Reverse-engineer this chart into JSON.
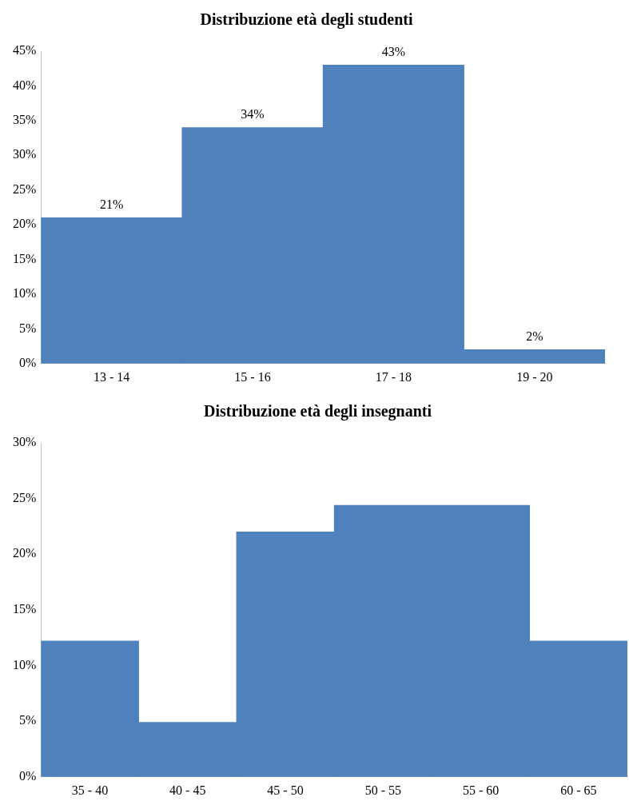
{
  "chart_data": [
    {
      "type": "bar",
      "title": "Distribuzione età degli studenti",
      "categories": [
        "13 - 14",
        "15 - 16",
        "17 - 18",
        "19 - 20"
      ],
      "values": [
        21,
        34,
        43,
        2
      ],
      "value_labels": [
        "21%",
        "34%",
        "43%",
        "2%"
      ],
      "color": "#4f81bd",
      "ylim": [
        0,
        45
      ],
      "yticks": [
        {
          "value": 0,
          "label": "0%"
        },
        {
          "value": 5,
          "label": "5%"
        },
        {
          "value": 10,
          "label": "10%"
        },
        {
          "value": 15,
          "label": "15%"
        },
        {
          "value": 20,
          "label": "20%"
        },
        {
          "value": 25,
          "label": "25%"
        },
        {
          "value": 30,
          "label": "30%"
        },
        {
          "value": 35,
          "label": "35%"
        },
        {
          "value": 40,
          "label": "40%"
        },
        {
          "value": 45,
          "label": "45%"
        }
      ],
      "grid": false,
      "legend": false
    },
    {
      "type": "bar",
      "title": "Distribuzione età degli insegnanti",
      "categories": [
        "35 - 40",
        "40 - 45",
        "45 - 50",
        "50 - 55",
        "55 - 60",
        "60 - 65"
      ],
      "values": [
        12.2,
        4.9,
        22.0,
        24.4,
        24.4,
        12.2
      ],
      "color": "#4f81bd",
      "ylim": [
        0,
        30
      ],
      "yticks": [
        {
          "value": 0,
          "label": "0%"
        },
        {
          "value": 5,
          "label": "5%"
        },
        {
          "value": 10,
          "label": "10%"
        },
        {
          "value": 15,
          "label": "15%"
        },
        {
          "value": 20,
          "label": "20%"
        },
        {
          "value": 25,
          "label": "25%"
        },
        {
          "value": 30,
          "label": "30%"
        }
      ],
      "grid": false,
      "legend": false
    }
  ]
}
